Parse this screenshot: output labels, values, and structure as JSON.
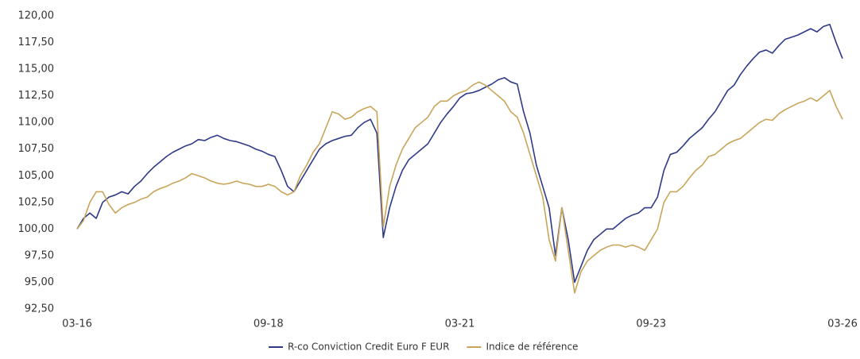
{
  "chart_data": {
    "type": "line",
    "x": [
      "03-16",
      "04-16",
      "05-16",
      "06-16",
      "07-16",
      "08-16",
      "09-16",
      "10-16",
      "11-16",
      "12-16",
      "01-17",
      "02-17",
      "03-17",
      "04-17",
      "05-17",
      "06-17",
      "07-17",
      "08-17",
      "09-17",
      "10-17",
      "11-17",
      "12-17",
      "01-18",
      "02-18",
      "03-18",
      "04-18",
      "05-18",
      "06-18",
      "07-18",
      "08-18",
      "09-18",
      "10-18",
      "11-18",
      "12-18",
      "01-19",
      "02-19",
      "03-19",
      "04-19",
      "05-19",
      "06-19",
      "07-19",
      "08-19",
      "09-19",
      "10-19",
      "11-19",
      "12-19",
      "01-20",
      "02-20",
      "03-20",
      "04-20",
      "05-20",
      "06-20",
      "07-20",
      "08-20",
      "09-20",
      "10-20",
      "11-20",
      "12-20",
      "01-21",
      "02-21",
      "03-21",
      "04-21",
      "05-21",
      "06-21",
      "07-21",
      "08-21",
      "09-21",
      "10-21",
      "11-21",
      "12-21",
      "01-22",
      "02-22",
      "03-22",
      "04-22",
      "05-22",
      "06-22",
      "07-22",
      "08-22",
      "09-22",
      "10-22",
      "11-22",
      "12-22",
      "01-23",
      "02-23",
      "03-23",
      "04-23",
      "05-23",
      "06-23",
      "07-23",
      "08-23",
      "09-23",
      "10-23",
      "11-23",
      "12-23",
      "01-24",
      "02-24",
      "03-24",
      "04-24",
      "05-24",
      "06-24",
      "07-24",
      "08-24",
      "09-24",
      "10-24",
      "11-24",
      "12-24",
      "01-25",
      "02-25",
      "03-25",
      "04-25",
      "05-25",
      "06-25",
      "07-25",
      "08-25",
      "09-25",
      "10-25",
      "11-25",
      "12-25",
      "01-26",
      "02-26",
      "03-26"
    ],
    "series": [
      {
        "name": "R-co Conviction Credit Euro F EUR",
        "color": "#2e3a87",
        "values": [
          100,
          101,
          101.5,
          101,
          102.5,
          103,
          103.2,
          103.5,
          103.3,
          104,
          104.5,
          105.2,
          105.8,
          106.3,
          106.8,
          107.2,
          107.5,
          107.8,
          108,
          108.4,
          108.3,
          108.6,
          108.8,
          108.5,
          108.3,
          108.2,
          108,
          107.8,
          107.5,
          107.3,
          107,
          106.8,
          105.5,
          104,
          103.5,
          104.5,
          105.5,
          106.5,
          107.5,
          108,
          108.3,
          108.5,
          108.7,
          108.8,
          109.5,
          110,
          110.3,
          109,
          99.2,
          102,
          104,
          105.5,
          106.5,
          107,
          107.5,
          108,
          109,
          110,
          110.8,
          111.5,
          112.3,
          112.7,
          112.8,
          113,
          113.3,
          113.6,
          114,
          114.2,
          113.8,
          113.6,
          111,
          109,
          106,
          104,
          102,
          97.5,
          102,
          99,
          95,
          96.5,
          98,
          99,
          99.5,
          100,
          100,
          100.5,
          101,
          101.3,
          101.5,
          102,
          102,
          103,
          105.5,
          107,
          107.2,
          107.8,
          108.5,
          109,
          109.5,
          110.3,
          111,
          112,
          113,
          113.5,
          114.5,
          115.3,
          116,
          116.6,
          116.8,
          116.5,
          117.2,
          117.8,
          118,
          118.2,
          118.5,
          118.8,
          118.5,
          119,
          119.2,
          117.5,
          116
        ]
      },
      {
        "name": "Indice de référence",
        "color": "#c9a55a",
        "values": [
          100,
          100.8,
          102.5,
          103.5,
          103.5,
          102.3,
          101.5,
          102,
          102.3,
          102.5,
          102.8,
          103,
          103.5,
          103.8,
          104,
          104.3,
          104.5,
          104.8,
          105.2,
          105,
          104.8,
          104.5,
          104.3,
          104.2,
          104.3,
          104.5,
          104.3,
          104.2,
          104,
          104,
          104.2,
          104,
          103.5,
          103.2,
          103.5,
          105,
          106,
          107.2,
          108,
          109.5,
          111,
          110.8,
          110.3,
          110.5,
          111,
          111.3,
          111.5,
          111,
          100.2,
          104,
          106,
          107.5,
          108.5,
          109.5,
          110,
          110.5,
          111.5,
          112,
          112,
          112.5,
          112.8,
          113,
          113.5,
          113.8,
          113.5,
          113,
          112.5,
          112,
          111,
          110.5,
          109,
          107,
          105,
          103,
          99,
          97,
          102,
          98,
          94,
          96,
          97,
          97.5,
          98,
          98.3,
          98.5,
          98.5,
          98.3,
          98.5,
          98.3,
          98,
          99,
          100,
          102.5,
          103.5,
          103.5,
          104,
          104.8,
          105.5,
          106,
          106.8,
          107,
          107.5,
          108,
          108.3,
          108.5,
          109,
          109.5,
          110,
          110.3,
          110.2,
          110.8,
          111.2,
          111.5,
          111.8,
          112,
          112.3,
          112,
          112.5,
          113,
          111.5,
          110.3
        ]
      }
    ],
    "ylim": [
      92.5,
      120
    ],
    "yticks": [
      {
        "value": 92.5,
        "label": "92,50"
      },
      {
        "value": 95,
        "label": "95,00"
      },
      {
        "value": 97.5,
        "label": "97,50"
      },
      {
        "value": 100,
        "label": "100,00"
      },
      {
        "value": 102.5,
        "label": "102,50"
      },
      {
        "value": 105,
        "label": "105,00"
      },
      {
        "value": 107.5,
        "label": "107,50"
      },
      {
        "value": 110,
        "label": "110,00"
      },
      {
        "value": 112.5,
        "label": "112,50"
      },
      {
        "value": 115,
        "label": "115,00"
      },
      {
        "value": 117.5,
        "label": "117,50"
      },
      {
        "value": 120,
        "label": "120,00"
      }
    ],
    "xticks": [
      "03-16",
      "09-18",
      "03-21",
      "09-23",
      "03-26"
    ],
    "legend": "bottom"
  }
}
